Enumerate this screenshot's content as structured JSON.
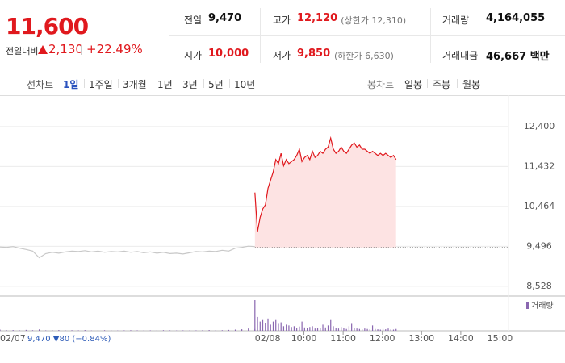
{
  "header": {
    "price": "11,600",
    "change_label": "전일대비",
    "change": "2,130",
    "rate": "+22.49%",
    "stats": [
      {
        "label": "전일",
        "value": "9,470",
        "color": "#111"
      },
      {
        "label": "고가",
        "value": "12,120",
        "note": "(상한가 12,310)",
        "color": "#e0191e"
      },
      {
        "label": "거래량",
        "value": "4,164,055",
        "color": "#111"
      },
      {
        "label": "시가",
        "value": "10,000",
        "color": "#e0191e"
      },
      {
        "label": "저가",
        "value": "9,850",
        "note": "(하한가 6,630)",
        "color": "#e0191e"
      },
      {
        "label": "거래대금",
        "value": "46,667 백만",
        "color": "#111"
      }
    ]
  },
  "tabs": {
    "line_label": "선차트",
    "periods": [
      "1일",
      "1주일",
      "3개월",
      "1년",
      "3년",
      "5년",
      "10년"
    ],
    "active": 0,
    "candle_label": "봉차트",
    "candles": [
      "일봉",
      "주봉",
      "월봉"
    ]
  },
  "chart_data": {
    "type": "line",
    "annotation": "9,470 ▼80 (−0.84%)",
    "xlim": [
      -405,
      373
    ],
    "ylim": [
      8330,
      12730
    ],
    "xticks": [
      {
        "value": 60,
        "label": "10:00"
      },
      {
        "value": 120,
        "label": "11:00"
      },
      {
        "value": 180,
        "label": "12:00"
      },
      {
        "value": 240,
        "label": "13:00"
      },
      {
        "value": 300,
        "label": "14:00"
      },
      {
        "value": 360,
        "label": "15:00"
      }
    ],
    "yticks": [
      {
        "value": 12400,
        "label": "12,400"
      },
      {
        "value": 11432,
        "label": "11,432"
      },
      {
        "value": 10464,
        "label": "10,464"
      },
      {
        "value": 9496,
        "label": "9,496"
      },
      {
        "value": 8528,
        "label": "8,528"
      }
    ],
    "grid": true,
    "baseline": 9470,
    "series": [
      {
        "name": "02/07",
        "color": "#c8c8c8",
        "x": [
          -405,
          -395,
          -385,
          -375,
          -365,
          -355,
          -345,
          -335,
          -325,
          -315,
          -305,
          -295,
          -285,
          -275,
          -265,
          -255,
          -245,
          -235,
          -225,
          -215,
          -205,
          -195,
          -185,
          -175,
          -165,
          -155,
          -145,
          -135,
          -125,
          -115,
          -105,
          -95,
          -85,
          -75,
          -65,
          -55,
          -45,
          -35,
          -25,
          -15
        ],
        "values": [
          9480,
          9470,
          9490,
          9450,
          9420,
          9380,
          9220,
          9320,
          9350,
          9330,
          9360,
          9380,
          9370,
          9390,
          9360,
          9380,
          9350,
          9370,
          9360,
          9380,
          9350,
          9370,
          9340,
          9360,
          9330,
          9350,
          9320,
          9330,
          9310,
          9340,
          9370,
          9360,
          9380,
          9370,
          9400,
          9380,
          9450,
          9470,
          9500,
          9490
        ]
      },
      {
        "name": "02/08",
        "color": "#e0191e",
        "fill": "#fde3e3",
        "x": [
          -15,
          -11,
          -7,
          -3,
          1,
          5,
          9,
          13,
          17,
          21,
          25,
          29,
          33,
          37,
          41,
          45,
          49,
          53,
          57,
          61,
          65,
          69,
          73,
          77,
          81,
          85,
          89,
          93,
          97,
          101,
          105,
          109,
          113,
          117,
          121,
          125,
          129,
          133,
          137,
          141,
          145,
          149,
          153,
          157,
          161,
          165,
          169,
          173,
          177,
          181,
          185,
          189,
          193,
          197,
          201
        ],
        "values": [
          10800,
          9850,
          10200,
          10400,
          10500,
          10900,
          11100,
          11300,
          11600,
          11500,
          11750,
          11450,
          11600,
          11500,
          11550,
          11600,
          11700,
          11850,
          11550,
          11650,
          11700,
          11600,
          11800,
          11650,
          11700,
          11800,
          11750,
          11850,
          11900,
          12120,
          11850,
          11750,
          11800,
          11900,
          11800,
          11750,
          11850,
          11950,
          12000,
          11900,
          11950,
          11850,
          11850,
          11800,
          11750,
          11800,
          11750,
          11700,
          11750,
          11700,
          11750,
          11700,
          11650,
          11700,
          11600
        ]
      }
    ],
    "volume": {
      "name": "거래량",
      "color": "#8a67b0",
      "ylim": [
        0,
        200000
      ],
      "x": [
        -405,
        -395,
        -385,
        -375,
        -365,
        -355,
        -345,
        -335,
        -325,
        -315,
        -305,
        -295,
        -285,
        -275,
        -265,
        -255,
        -245,
        -235,
        -225,
        -215,
        -205,
        -195,
        -185,
        -175,
        -165,
        -155,
        -145,
        -135,
        -125,
        -115,
        -105,
        -95,
        -85,
        -75,
        -65,
        -55,
        -45,
        -35,
        -25,
        -15,
        -15,
        -11,
        -7,
        -3,
        1,
        5,
        9,
        13,
        17,
        21,
        25,
        29,
        33,
        37,
        41,
        45,
        49,
        53,
        57,
        61,
        65,
        69,
        73,
        77,
        81,
        85,
        89,
        93,
        97,
        101,
        105,
        109,
        113,
        117,
        121,
        125,
        129,
        133,
        137,
        141,
        145,
        149,
        153,
        157,
        161,
        165,
        169,
        173,
        177,
        181,
        185,
        189,
        193,
        197,
        201
      ],
      "values": [
        8000,
        4000,
        5000,
        3000,
        6000,
        4000,
        9000,
        3000,
        4000,
        5000,
        3000,
        4000,
        3000,
        5000,
        2000,
        3000,
        4000,
        3000,
        2000,
        3000,
        4000,
        3000,
        2000,
        3000,
        2000,
        4000,
        3000,
        2000,
        3000,
        2000,
        3000,
        4000,
        5000,
        3000,
        4000,
        6000,
        8000,
        10000,
        15000,
        12000,
        200000,
        90000,
        60000,
        70000,
        50000,
        80000,
        40000,
        60000,
        70000,
        45000,
        55000,
        30000,
        40000,
        35000,
        25000,
        30000,
        20000,
        28000,
        60000,
        22000,
        18000,
        25000,
        30000,
        15000,
        20000,
        18000,
        40000,
        22000,
        35000,
        70000,
        30000,
        20000,
        15000,
        25000,
        18000,
        12000,
        30000,
        45000,
        20000,
        15000,
        12000,
        10000,
        15000,
        12000,
        10000,
        35000,
        12000,
        10000,
        8000,
        12000,
        10000,
        15000,
        9000,
        8000,
        12000
      ]
    }
  }
}
